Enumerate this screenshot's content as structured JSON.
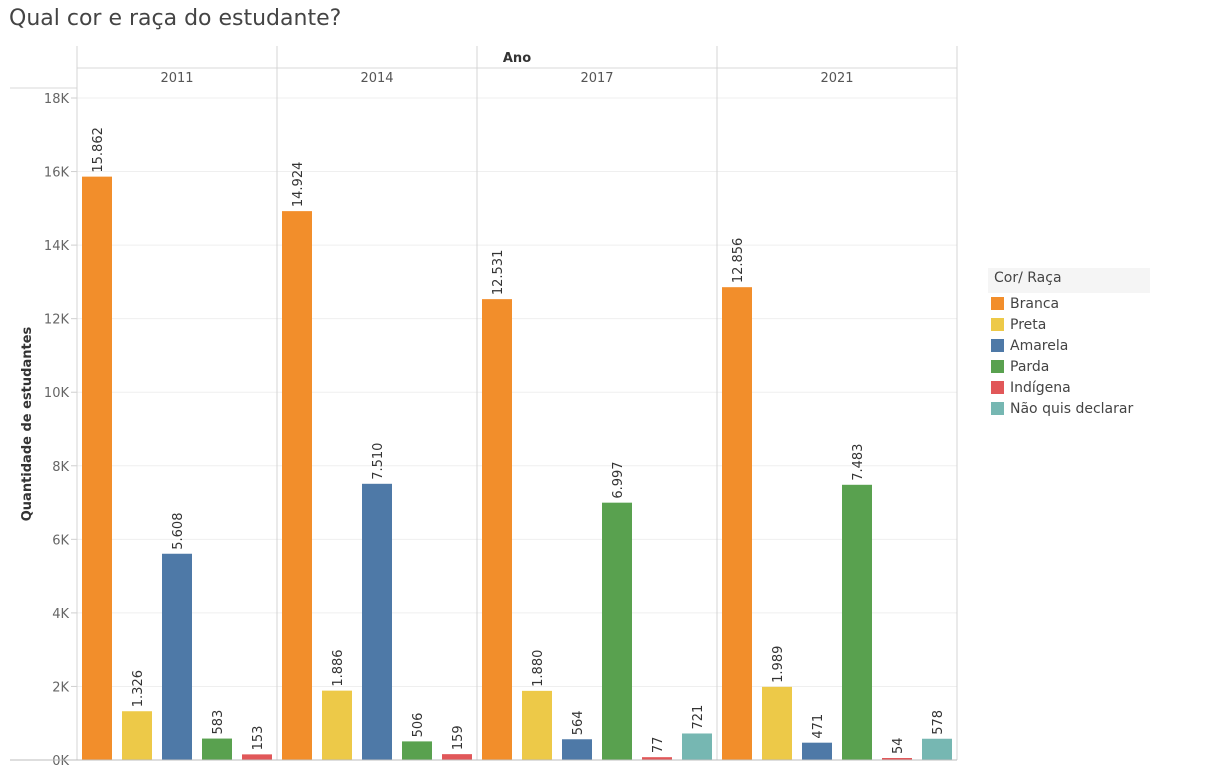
{
  "title": "Qual cor e raça do estudante?",
  "chart_data": {
    "type": "bar",
    "column_header": "Ano",
    "ylabel": "Quantidade de estudantes",
    "ylim": [
      0,
      18000
    ],
    "y_ticks": [
      0,
      2000,
      4000,
      6000,
      8000,
      10000,
      12000,
      14000,
      16000,
      18000
    ],
    "y_tick_labels": [
      "0K",
      "2K",
      "4K",
      "6K",
      "8K",
      "10K",
      "12K",
      "14K",
      "16K",
      "18K"
    ],
    "grid": true,
    "legend_position": "right",
    "legend_title": "Cor/ Raça",
    "categories": [
      "Branca",
      "Preta",
      "Amarela",
      "Parda",
      "Indígena",
      "Não quis declarar"
    ],
    "colors": [
      "#f28e2b",
      "#edc948",
      "#4e79a7",
      "#59a14f",
      "#e15759",
      "#76b7b2"
    ],
    "panels": [
      {
        "year": "2011",
        "values": [
          15862,
          1326,
          5608,
          583,
          153,
          null
        ],
        "labels": [
          "15.862",
          "1.326",
          "5.608",
          "583",
          "153",
          ""
        ]
      },
      {
        "year": "2014",
        "values": [
          14924,
          1886,
          7510,
          506,
          159,
          null
        ],
        "labels": [
          "14.924",
          "1.886",
          "7.510",
          "506",
          "159",
          ""
        ]
      },
      {
        "year": "2017",
        "values": [
          12531,
          1880,
          564,
          6997,
          77,
          721
        ],
        "labels": [
          "12.531",
          "1.880",
          "564",
          "6.997",
          "77",
          "721"
        ]
      },
      {
        "year": "2021",
        "values": [
          12856,
          1989,
          471,
          7483,
          54,
          578
        ],
        "labels": [
          "12.856",
          "1.989",
          "471",
          "7.483",
          "54",
          "578"
        ]
      }
    ]
  }
}
